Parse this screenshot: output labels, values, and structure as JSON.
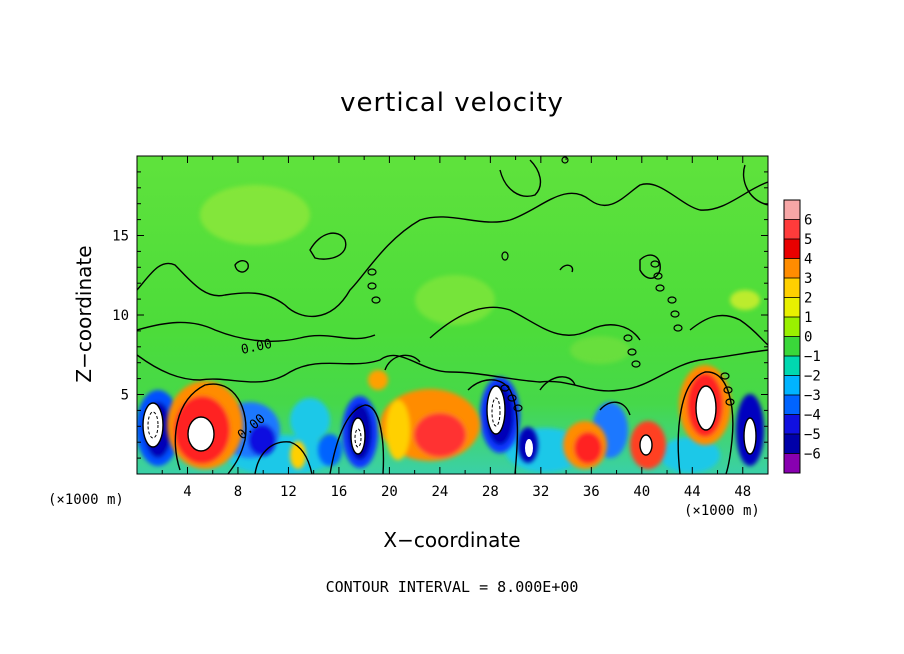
{
  "chart_data": {
    "type": "heatmap",
    "title": "vertical velocity",
    "xlabel": "X−coordinate",
    "ylabel": "Z−coordinate",
    "x_unit": "(×1000 m)",
    "footnote": "CONTOUR INTERVAL = 8.000E+00",
    "x_ticks": [
      "4",
      "8",
      "12",
      "16",
      "20",
      "24",
      "28",
      "32",
      "36",
      "40",
      "44",
      "48"
    ],
    "x_tick_values": [
      4,
      8,
      12,
      16,
      20,
      24,
      28,
      32,
      36,
      40,
      44,
      48
    ],
    "y_ticks": [
      "5",
      "10",
      "15"
    ],
    "y_tick_values": [
      5,
      10,
      15
    ],
    "xlim": [
      0,
      50
    ],
    "ylim": [
      0,
      20
    ],
    "colorbar": {
      "ticks": [
        "6",
        "5",
        "4",
        "3",
        "2",
        "1",
        "0",
        "−1",
        "−2",
        "−3",
        "−4",
        "−5",
        "−6"
      ],
      "values": [
        6,
        5,
        4,
        3,
        2,
        1,
        0,
        -1,
        -2,
        -3,
        -4,
        -5,
        -6
      ],
      "colors": [
        "#f7a6a6",
        "#ff3b3b",
        "#e80000",
        "#ff8c00",
        "#ffd000",
        "#e8f000",
        "#9af000",
        "#3ad83a",
        "#00d8b0",
        "#00b4ff",
        "#0064ff",
        "#1010e0",
        "#0000a8",
        "#8800b0"
      ]
    },
    "contour_labels": [
      "0.00",
      "0.00"
    ],
    "grid": false
  }
}
